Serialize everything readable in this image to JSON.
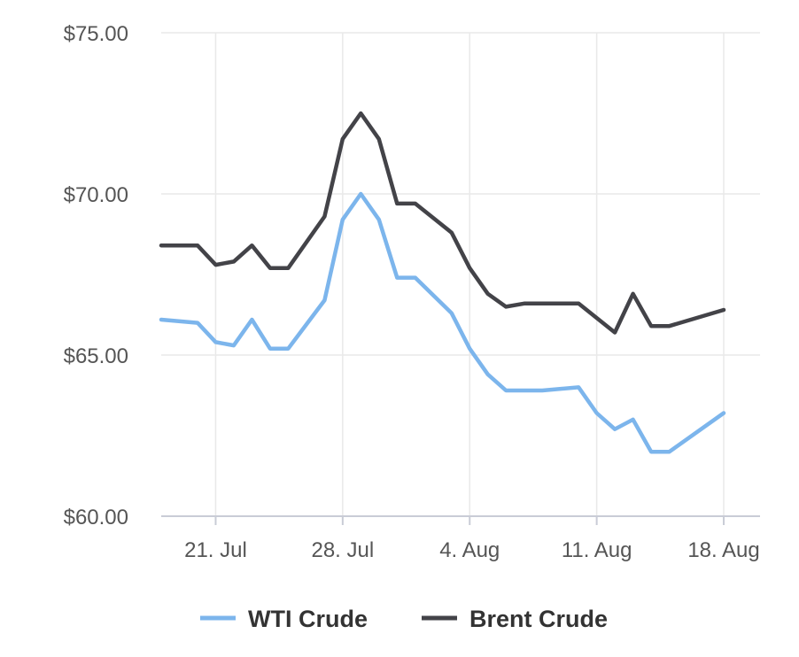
{
  "chart_data": {
    "type": "line",
    "title": "",
    "xlabel": "",
    "ylabel": "",
    "x_start": "2018-07-18",
    "x_end": "2018-08-20",
    "ylim": [
      60,
      75
    ],
    "yticks": [
      {
        "value": 75,
        "label": "$75.00"
      },
      {
        "value": 70,
        "label": "$70.00"
      },
      {
        "value": 65,
        "label": "$65.00"
      },
      {
        "value": 60,
        "label": "$60.00"
      }
    ],
    "xticks": [
      {
        "date": "2018-07-21",
        "label": "21. Jul"
      },
      {
        "date": "2018-07-28",
        "label": "28. Jul"
      },
      {
        "date": "2018-08-04",
        "label": "4. Aug"
      },
      {
        "date": "2018-08-11",
        "label": "11. Aug"
      },
      {
        "date": "2018-08-18",
        "label": "18. Aug"
      }
    ],
    "grid": true,
    "legend": "bottom-center",
    "series": [
      {
        "name": "WTI Crude",
        "color": "#7cb5ec",
        "points": [
          [
            "2018-07-18",
            66.1
          ],
          [
            "2018-07-20",
            66.0
          ],
          [
            "2018-07-21",
            65.4
          ],
          [
            "2018-07-22",
            65.3
          ],
          [
            "2018-07-23",
            66.1
          ],
          [
            "2018-07-24",
            65.2
          ],
          [
            "2018-07-25",
            65.2
          ],
          [
            "2018-07-27",
            66.7
          ],
          [
            "2018-07-28",
            69.2
          ],
          [
            "2018-07-29",
            70.0
          ],
          [
            "2018-07-30",
            69.2
          ],
          [
            "2018-07-31",
            67.4
          ],
          [
            "2018-08-01",
            67.4
          ],
          [
            "2018-08-03",
            66.3
          ],
          [
            "2018-08-04",
            65.2
          ],
          [
            "2018-08-05",
            64.4
          ],
          [
            "2018-08-06",
            63.9
          ],
          [
            "2018-08-08",
            63.9
          ],
          [
            "2018-08-10",
            64.0
          ],
          [
            "2018-08-11",
            63.2
          ],
          [
            "2018-08-12",
            62.7
          ],
          [
            "2018-08-13",
            63.0
          ],
          [
            "2018-08-14",
            62.0
          ],
          [
            "2018-08-15",
            62.0
          ],
          [
            "2018-08-18",
            63.2
          ]
        ]
      },
      {
        "name": "Brent Crude",
        "color": "#434348",
        "points": [
          [
            "2018-07-18",
            68.4
          ],
          [
            "2018-07-20",
            68.4
          ],
          [
            "2018-07-21",
            67.8
          ],
          [
            "2018-07-22",
            67.9
          ],
          [
            "2018-07-23",
            68.4
          ],
          [
            "2018-07-24",
            67.7
          ],
          [
            "2018-07-25",
            67.7
          ],
          [
            "2018-07-27",
            69.3
          ],
          [
            "2018-07-28",
            71.7
          ],
          [
            "2018-07-29",
            72.5
          ],
          [
            "2018-07-30",
            71.7
          ],
          [
            "2018-07-31",
            69.7
          ],
          [
            "2018-08-01",
            69.7
          ],
          [
            "2018-08-03",
            68.8
          ],
          [
            "2018-08-04",
            67.7
          ],
          [
            "2018-08-05",
            66.9
          ],
          [
            "2018-08-06",
            66.5
          ],
          [
            "2018-08-07",
            66.6
          ],
          [
            "2018-08-08",
            66.6
          ],
          [
            "2018-08-10",
            66.6
          ],
          [
            "2018-08-12",
            65.7
          ],
          [
            "2018-08-13",
            66.9
          ],
          [
            "2018-08-14",
            65.9
          ],
          [
            "2018-08-15",
            65.9
          ],
          [
            "2018-08-18",
            66.4
          ]
        ]
      }
    ]
  }
}
